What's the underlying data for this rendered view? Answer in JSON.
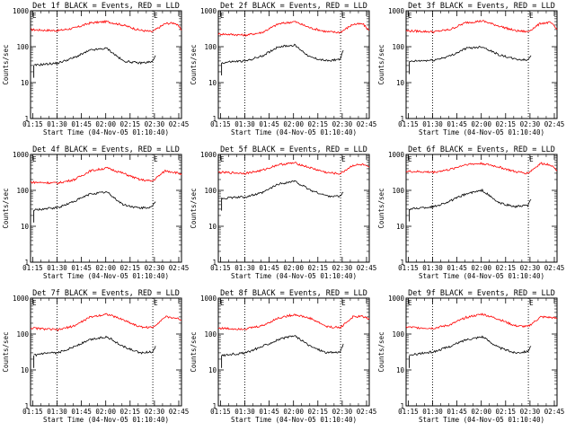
{
  "chart_data": {
    "type": "line",
    "layout": "3x3 grid",
    "common": {
      "xlabel": "Start Time (04-Nov-05 01:10:40)",
      "ylabel": "Counts/sec",
      "yscale": "log",
      "ylim": [
        1,
        1000
      ],
      "y_ticks": [
        "1000",
        "100",
        "10",
        "1"
      ],
      "xlim_minutes_after_start": [
        3,
        96
      ],
      "x_ticks": [
        "01:15",
        "01:30",
        "01:45",
        "02:00",
        "02:15",
        "02:30",
        "02:45"
      ],
      "vlines_dotted": [
        "01:30",
        "02:29"
      ],
      "corner_markers": [
        "E",
        "E"
      ],
      "series_colors": {
        "events": "#000000",
        "lld": "#ff0000"
      }
    },
    "panels": [
      {
        "title": "Det 1f BLACK = Events, RED = LLD",
        "lld": {
          "x": [
            0,
            10,
            20,
            30,
            40,
            50,
            60,
            70,
            78,
            86,
            92,
            96
          ],
          "y": [
            300,
            290,
            280,
            330,
            460,
            500,
            400,
            290,
            260,
            440,
            460,
            300
          ]
        },
        "events": {
          "x": [
            5,
            10,
            20,
            30,
            40,
            50,
            60,
            70,
            78,
            80
          ],
          "y": [
            30,
            32,
            35,
            50,
            80,
            90,
            40,
            35,
            38,
            55
          ]
        }
      },
      {
        "title": "Det 2f BLACK = Events, RED = LLD",
        "lld": {
          "x": [
            0,
            10,
            20,
            30,
            40,
            50,
            60,
            70,
            78,
            86,
            92,
            96
          ],
          "y": [
            230,
            220,
            210,
            250,
            430,
            500,
            330,
            260,
            250,
            420,
            430,
            280
          ]
        },
        "events": {
          "x": [
            5,
            10,
            20,
            30,
            40,
            50,
            60,
            70,
            78,
            80
          ],
          "y": [
            35,
            38,
            40,
            55,
            100,
            110,
            50,
            40,
            45,
            75
          ]
        }
      },
      {
        "title": "Det 3f BLACK = Events, RED = LLD",
        "lld": {
          "x": [
            0,
            10,
            20,
            30,
            40,
            50,
            60,
            70,
            78,
            86,
            92,
            96
          ],
          "y": [
            280,
            270,
            260,
            300,
            470,
            520,
            380,
            280,
            260,
            450,
            470,
            300
          ]
        },
        "events": {
          "x": [
            5,
            10,
            20,
            30,
            40,
            50,
            60,
            70,
            78,
            80
          ],
          "y": [
            38,
            40,
            42,
            55,
            90,
            100,
            60,
            45,
            42,
            60
          ]
        }
      },
      {
        "title": "Det 4f BLACK = Events, RED = LLD",
        "lld": {
          "x": [
            0,
            10,
            20,
            30,
            40,
            50,
            60,
            70,
            78,
            86,
            92,
            96
          ],
          "y": [
            170,
            165,
            160,
            200,
            350,
            420,
            300,
            200,
            180,
            350,
            320,
            280
          ]
        },
        "events": {
          "x": [
            5,
            10,
            20,
            30,
            40,
            50,
            60,
            70,
            78,
            80
          ],
          "y": [
            28,
            30,
            33,
            50,
            80,
            90,
            40,
            32,
            34,
            50
          ]
        }
      },
      {
        "title": "Det 5f BLACK = Events, RED = LLD",
        "lld": {
          "x": [
            0,
            10,
            20,
            30,
            40,
            50,
            60,
            70,
            78,
            86,
            92,
            96
          ],
          "y": [
            320,
            310,
            300,
            360,
            520,
            580,
            420,
            310,
            290,
            500,
            520,
            420
          ]
        },
        "events": {
          "x": [
            5,
            10,
            20,
            30,
            40,
            50,
            60,
            70,
            78,
            80
          ],
          "y": [
            60,
            62,
            66,
            85,
            150,
            180,
            100,
            70,
            68,
            90
          ]
        }
      },
      {
        "title": "Det 6f BLACK = Events, RED = LLD",
        "lld": {
          "x": [
            0,
            10,
            20,
            30,
            40,
            50,
            60,
            70,
            78,
            86,
            92,
            96
          ],
          "y": [
            340,
            330,
            320,
            380,
            530,
            560,
            450,
            330,
            300,
            560,
            520,
            360
          ]
        },
        "events": {
          "x": [
            5,
            10,
            20,
            30,
            40,
            50,
            60,
            70,
            78,
            80
          ],
          "y": [
            30,
            32,
            35,
            50,
            80,
            100,
            45,
            35,
            38,
            55
          ]
        }
      },
      {
        "title": "Det 7f BLACK = Events, RED = LLD",
        "lld": {
          "x": [
            0,
            10,
            20,
            30,
            40,
            50,
            60,
            70,
            78,
            86,
            92,
            96
          ],
          "y": [
            150,
            140,
            130,
            170,
            300,
            360,
            250,
            160,
            150,
            300,
            280,
            250
          ]
        },
        "events": {
          "x": [
            5,
            10,
            20,
            30,
            40,
            50,
            60,
            70,
            78,
            80
          ],
          "y": [
            25,
            28,
            30,
            45,
            70,
            85,
            45,
            30,
            32,
            45
          ]
        }
      },
      {
        "title": "Det 8f BLACK = Events, RED = LLD",
        "lld": {
          "x": [
            0,
            10,
            20,
            30,
            40,
            50,
            60,
            70,
            78,
            86,
            92,
            96
          ],
          "y": [
            150,
            140,
            140,
            170,
            280,
            350,
            270,
            160,
            150,
            300,
            310,
            260
          ]
        },
        "events": {
          "x": [
            5,
            10,
            20,
            30,
            40,
            50,
            60,
            70,
            78,
            80
          ],
          "y": [
            25,
            27,
            30,
            45,
            70,
            90,
            45,
            30,
            32,
            50
          ]
        }
      },
      {
        "title": "Det 9f BLACK = Events, RED = LLD",
        "lld": {
          "x": [
            0,
            10,
            20,
            30,
            40,
            50,
            60,
            70,
            78,
            86,
            92,
            96
          ],
          "y": [
            160,
            150,
            145,
            180,
            290,
            360,
            260,
            170,
            160,
            300,
            290,
            270
          ]
        },
        "events": {
          "x": [
            5,
            10,
            20,
            30,
            40,
            50,
            60,
            70,
            78,
            80
          ],
          "y": [
            25,
            28,
            32,
            45,
            70,
            85,
            42,
            30,
            33,
            48
          ]
        }
      }
    ]
  }
}
